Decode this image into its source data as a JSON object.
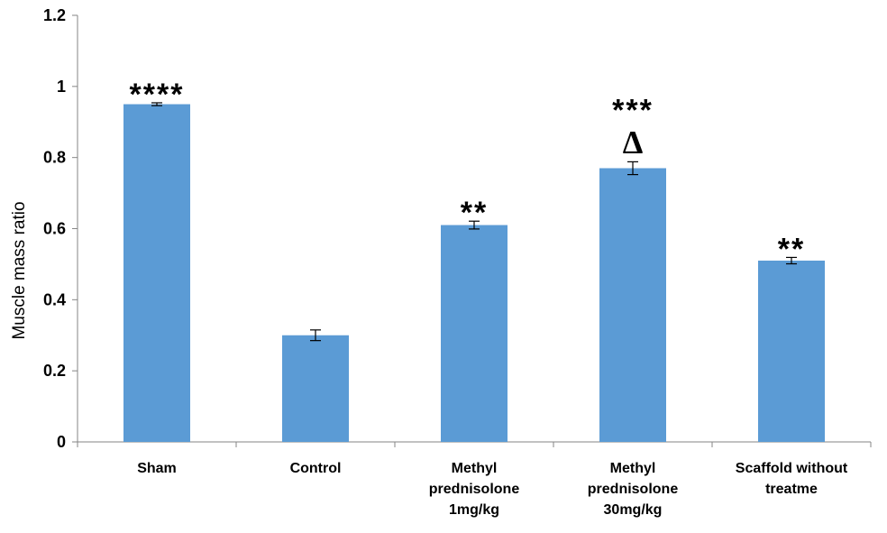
{
  "chart_data": {
    "type": "bar",
    "title": "",
    "xlabel": "",
    "ylabel": "Muscle mass ratio",
    "ylim": [
      0,
      1.2
    ],
    "yticks": [
      "0",
      "0.2",
      "0.4",
      "0.6",
      "0.8",
      "1",
      "1.2"
    ],
    "categories": [
      [
        "Sham"
      ],
      [
        "Control"
      ],
      [
        "Methyl",
        "prednisolone",
        "1mg/kg"
      ],
      [
        "Methyl",
        "prednisolone",
        "30mg/kg"
      ],
      [
        "Scaffold without",
        "treatme"
      ]
    ],
    "values": [
      0.95,
      0.3,
      0.61,
      0.77,
      0.51
    ],
    "errors": [
      0.004,
      0.015,
      0.011,
      0.018,
      0.009
    ],
    "significance": [
      [
        "****"
      ],
      [],
      [
        "**"
      ],
      [
        "***",
        "Δ"
      ],
      [
        "**"
      ]
    ],
    "bar_color": "#5B9BD5",
    "grid": false,
    "legend": "none"
  }
}
